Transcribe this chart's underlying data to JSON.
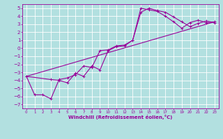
{
  "xlabel": "Windchill (Refroidissement éolien,°C)",
  "background_color": "#b2e0e0",
  "grid_color": "#ffffff",
  "line_color": "#990099",
  "xlim": [
    -0.5,
    23.5
  ],
  "ylim": [
    -7.5,
    5.5
  ],
  "xticks": [
    0,
    1,
    2,
    3,
    4,
    5,
    6,
    7,
    8,
    9,
    10,
    11,
    12,
    13,
    14,
    15,
    16,
    17,
    18,
    19,
    20,
    21,
    22,
    23
  ],
  "yticks": [
    -7,
    -6,
    -5,
    -4,
    -3,
    -2,
    -1,
    0,
    1,
    2,
    3,
    4,
    5
  ],
  "line1_x": [
    0,
    1,
    2,
    3,
    4,
    5,
    6,
    7,
    8,
    9,
    10,
    11,
    12,
    13,
    14,
    15,
    16,
    17,
    18,
    19,
    20,
    21,
    22,
    23
  ],
  "line1_y": [
    -3.5,
    -5.8,
    -5.8,
    -6.3,
    -3.9,
    -3.7,
    -3.3,
    -2.2,
    -2.4,
    -0.3,
    -0.2,
    0.3,
    0.4,
    1.0,
    5.0,
    4.8,
    4.6,
    4.0,
    3.3,
    2.5,
    3.2,
    3.5,
    3.2,
    3.3
  ],
  "line2_x": [
    0,
    3,
    4,
    5,
    6,
    7,
    8,
    9,
    10,
    11,
    12,
    13,
    14,
    15,
    16,
    17,
    18,
    19,
    20,
    21,
    22,
    23
  ],
  "line2_y": [
    -3.5,
    -3.9,
    -4.0,
    -4.3,
    -3.1,
    -3.5,
    -2.2,
    -2.7,
    -0.3,
    0.2,
    0.3,
    1.0,
    4.5,
    5.0,
    4.7,
    4.5,
    3.9,
    3.3,
    2.7,
    3.1,
    3.4,
    3.2
  ],
  "line3_x": [
    0,
    23
  ],
  "line3_y": [
    -3.5,
    3.3
  ]
}
